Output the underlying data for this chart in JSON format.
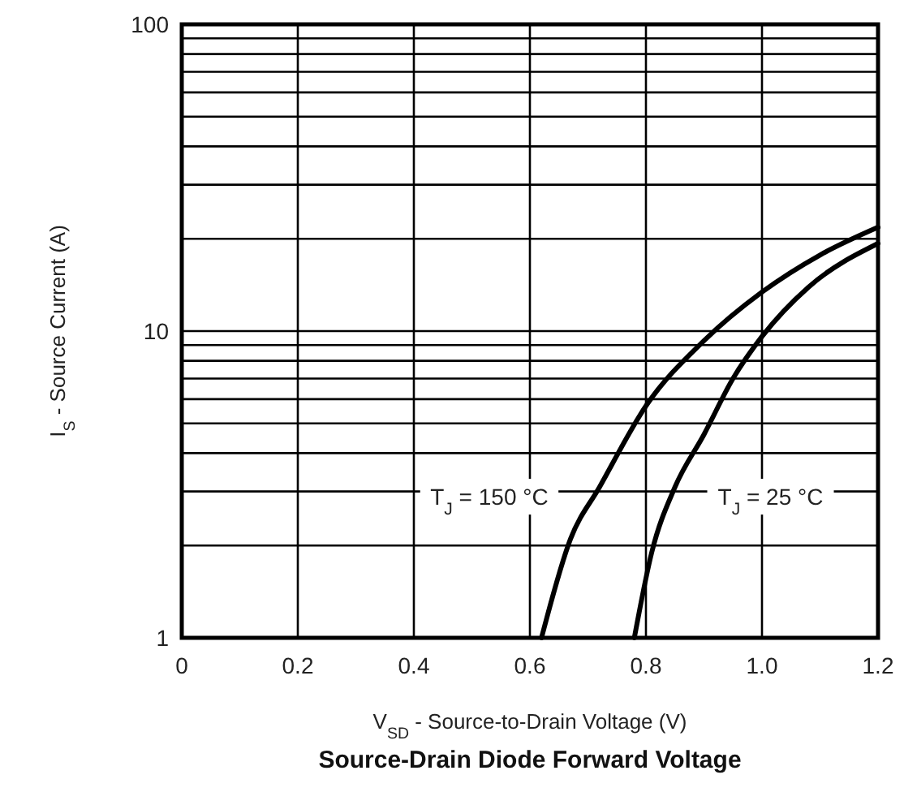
{
  "chart_data": {
    "type": "line",
    "title": "Source-Drain Diode Forward Voltage",
    "xlabel": "V$_{SD}$ - Source-to-Drain Voltage (V)",
    "ylabel": "I$_{S}$ - Source Current (A)",
    "log": "y",
    "grid": true,
    "marker": "none",
    "line_style": "solid",
    "xlim": [
      0,
      1.2
    ],
    "xticks": [
      0,
      0.2,
      0.4,
      0.6,
      {
        "value": 0.8,
        "label": "0.8"
      },
      {
        "value": 1.0,
        "label": "1.0"
      },
      1.2
    ],
    "ylim": [
      1,
      100
    ],
    "yticks": [
      1,
      {
        "value": 2,
        "label": null
      },
      {
        "value": 3,
        "label": null
      },
      {
        "value": 4,
        "label": null
      },
      {
        "value": 5,
        "label": null
      },
      {
        "value": 6,
        "label": null
      },
      {
        "value": 7,
        "label": null
      },
      {
        "value": 8,
        "label": null
      },
      {
        "value": 9,
        "label": null
      },
      10,
      {
        "value": 20,
        "label": null
      },
      {
        "value": 30,
        "label": null
      },
      {
        "value": 40,
        "label": null
      },
      {
        "value": 50,
        "label": null
      },
      {
        "value": 60,
        "label": null
      },
      {
        "value": 70,
        "label": null
      },
      {
        "value": 80,
        "label": null
      },
      {
        "value": 90,
        "label": null
      },
      100
    ],
    "series": [
      {
        "name": "T$_{J}$ = 150 °C",
        "color": "#000000",
        "x": [
          0.62,
          0.67,
          0.72,
          0.8,
          0.9,
          1.0,
          1.1,
          1.2
        ],
        "values": [
          1,
          2.1,
          3.1,
          5.7,
          9.3,
          13.4,
          17.7,
          21.8
        ]
      },
      {
        "name": "T$_{J}$ = 25 °C",
        "color": "#000000",
        "x": [
          0.78,
          0.81,
          0.85,
          0.9,
          0.95,
          1.0,
          1.08,
          1.2
        ],
        "values": [
          1,
          1.9,
          3.1,
          4.6,
          7.0,
          9.6,
          13.9,
          19.3
        ]
      }
    ]
  }
}
